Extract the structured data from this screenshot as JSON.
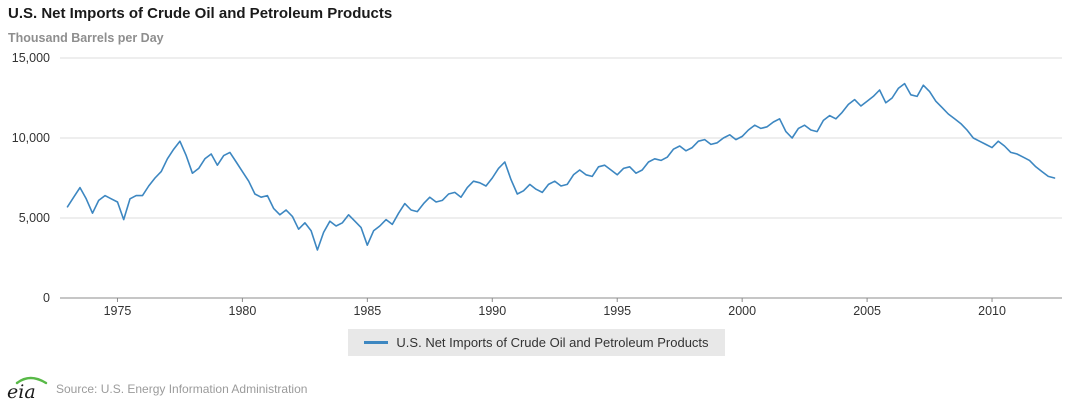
{
  "page": {
    "title": "U.S. Net Imports of Crude Oil and Petroleum Products",
    "subtitle": "Thousand Barrels per Day",
    "source": "Source: U.S. Energy Information Administration",
    "logo_text": "eia"
  },
  "legend": {
    "label": "U.S. Net Imports of Crude Oil and Petroleum Products"
  },
  "colors": {
    "accent": "#3d87c1",
    "grid": "#dcdcdc",
    "axis": "#8c8c8c",
    "tick_text": "#333333",
    "legend_bg": "#e8e8e8",
    "logo_green": "#58b947",
    "logo_dark": "#1a1a1a"
  },
  "chart_data": {
    "type": "line",
    "title": "U.S. Net Imports of Crude Oil and Petroleum Products",
    "ylabel": "Thousand Barrels per Day",
    "series_name": "U.S. Net Imports of Crude Oil and Petroleum Products",
    "x_start": 1973.0,
    "x_step": 0.25,
    "xlim": [
      1972.7,
      2012.8
    ],
    "ylim": [
      0,
      15000
    ],
    "yticks": [
      0,
      5000,
      10000,
      15000
    ],
    "ytick_labels": [
      "0",
      "5,000",
      "10,000",
      "15,000"
    ],
    "xticks": [
      1975,
      1980,
      1985,
      1990,
      1995,
      2000,
      2005,
      2010
    ],
    "grid": true,
    "legend_position": "bottom",
    "line_color": "#3d87c1",
    "values": [
      5700,
      6300,
      6900,
      6200,
      5300,
      6100,
      6400,
      6200,
      6000,
      4900,
      6200,
      6400,
      6400,
      7000,
      7500,
      7900,
      8700,
      9300,
      9800,
      8900,
      7800,
      8100,
      8700,
      9000,
      8300,
      8900,
      9100,
      8500,
      7900,
      7300,
      6500,
      6300,
      6400,
      5600,
      5200,
      5500,
      5100,
      4300,
      4700,
      4200,
      3000,
      4100,
      4800,
      4500,
      4700,
      5200,
      4800,
      4400,
      3300,
      4200,
      4500,
      4900,
      4600,
      5300,
      5900,
      5500,
      5400,
      5900,
      6300,
      6000,
      6100,
      6500,
      6600,
      6300,
      6900,
      7300,
      7200,
      7000,
      7500,
      8100,
      8500,
      7400,
      6500,
      6700,
      7100,
      6800,
      6600,
      7100,
      7300,
      7000,
      7100,
      7700,
      8000,
      7700,
      7600,
      8200,
      8300,
      8000,
      7700,
      8100,
      8200,
      7800,
      8000,
      8500,
      8700,
      8600,
      8800,
      9300,
      9500,
      9200,
      9400,
      9800,
      9900,
      9600,
      9700,
      10000,
      10200,
      9900,
      10100,
      10500,
      10800,
      10600,
      10700,
      11000,
      11200,
      10400,
      10000,
      10600,
      10800,
      10500,
      10400,
      11100,
      11400,
      11200,
      11600,
      12100,
      12400,
      12000,
      12300,
      12600,
      13000,
      12200,
      12500,
      13100,
      13400,
      12700,
      12600,
      13300,
      12900,
      12300,
      11900,
      11500,
      11200,
      10900,
      10500,
      10000,
      9800,
      9600,
      9400,
      9800,
      9500,
      9100,
      9000,
      8800,
      8600,
      8200,
      7900,
      7600,
      7500
    ]
  }
}
